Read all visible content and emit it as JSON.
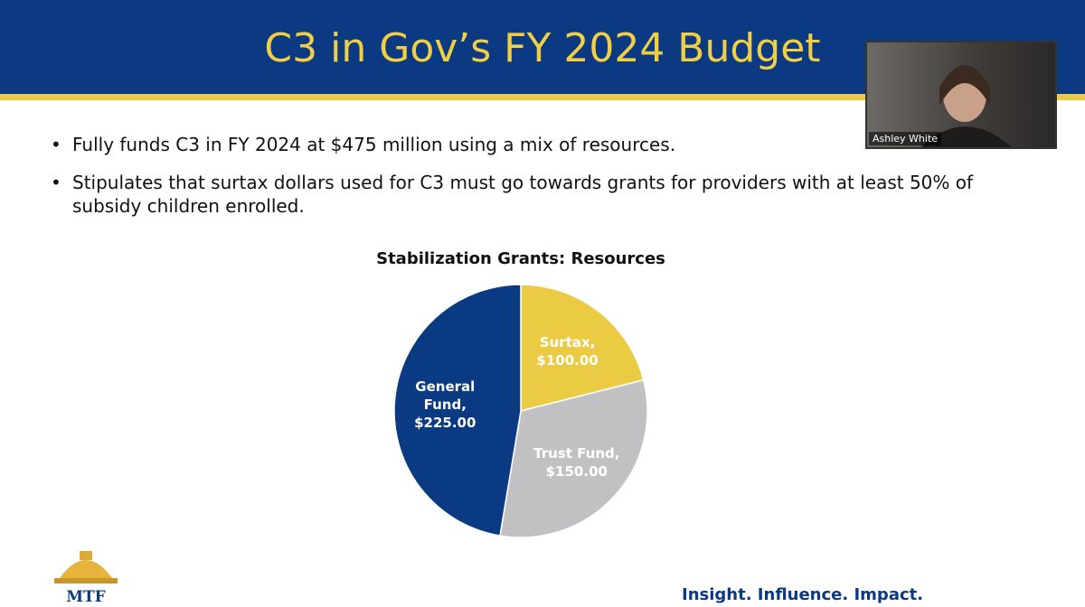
{
  "header": {
    "title": "C3 in Gov’s FY 2024 Budget"
  },
  "bullets": [
    "Fully funds C3 in FY 2024 at $475 million using a mix of resources.",
    "Stipulates that surtax dollars used for C3 must go towards grants for providers with at least 50% of subsidy children enrolled."
  ],
  "chart_data": {
    "type": "pie",
    "title": "Stabilization Grants: Resources",
    "categories": [
      "Surtax,",
      "Trust Fund,",
      "General Fund,"
    ],
    "values": [
      100,
      150,
      225
    ],
    "value_labels": [
      "$100.00",
      "$150.00",
      "$225.00"
    ],
    "colors": [
      "#ebca44",
      "#c1c0c3",
      "#0a3a82"
    ],
    "start_angle": 0,
    "direction": "clockwise"
  },
  "video": {
    "name": "Ashley White"
  },
  "footer": {
    "logo": "MTF",
    "tagline": "Insight. Influence. Impact."
  }
}
